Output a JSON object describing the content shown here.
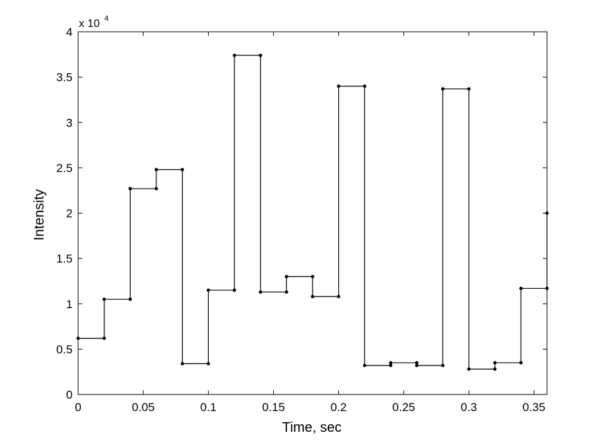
{
  "chart_data": {
    "type": "line",
    "step": true,
    "title": "",
    "xlabel": "Time, sec",
    "ylabel": "Intensity",
    "y_exponent_label": "x 10",
    "y_exponent_power": "4",
    "xlim": [
      0,
      0.36
    ],
    "ylim": [
      0,
      4
    ],
    "x_ticks": [
      0,
      0.05,
      0.1,
      0.15,
      0.2,
      0.25,
      0.3,
      0.35
    ],
    "x_tick_labels": [
      "0",
      "0.05",
      "0.1",
      "0.15",
      "0.2",
      "0.25",
      "0.3",
      "0.35"
    ],
    "y_ticks": [
      0,
      0.5,
      1,
      1.5,
      2,
      2.5,
      3,
      3.5,
      4
    ],
    "y_tick_labels": [
      "0",
      "0.5",
      "1",
      "1.5",
      "2",
      "2.5",
      "3",
      "3.5",
      "4"
    ],
    "grid": false,
    "line_color": "#000000",
    "series": [
      {
        "points": [
          [
            0,
            0.62
          ],
          [
            0.02,
            0.62
          ],
          [
            0.02,
            1.05
          ],
          [
            0.04,
            1.05
          ],
          [
            0.04,
            2.27
          ],
          [
            0.06,
            2.27
          ],
          [
            0.06,
            2.48
          ],
          [
            0.08,
            2.48
          ],
          [
            0.08,
            0.34
          ],
          [
            0.1,
            0.34
          ],
          [
            0.1,
            1.15
          ],
          [
            0.12,
            1.15
          ],
          [
            0.12,
            3.74
          ],
          [
            0.14,
            3.74
          ],
          [
            0.14,
            1.13
          ],
          [
            0.16,
            1.13
          ],
          [
            0.16,
            1.3
          ],
          [
            0.18,
            1.3
          ],
          [
            0.18,
            1.08
          ],
          [
            0.2,
            1.08
          ],
          [
            0.2,
            3.4
          ],
          [
            0.22,
            3.4
          ],
          [
            0.22,
            0.32
          ],
          [
            0.24,
            0.32
          ],
          [
            0.24,
            0.35
          ],
          [
            0.26,
            0.35
          ],
          [
            0.26,
            0.32
          ],
          [
            0.28,
            0.32
          ],
          [
            0.28,
            3.37
          ],
          [
            0.3,
            3.37
          ],
          [
            0.3,
            0.28
          ],
          [
            0.32,
            0.28
          ],
          [
            0.32,
            0.35
          ],
          [
            0.34,
            0.35
          ],
          [
            0.34,
            1.17
          ],
          [
            0.36,
            1.17
          ],
          [
            0.36,
            2.0
          ]
        ]
      }
    ]
  }
}
